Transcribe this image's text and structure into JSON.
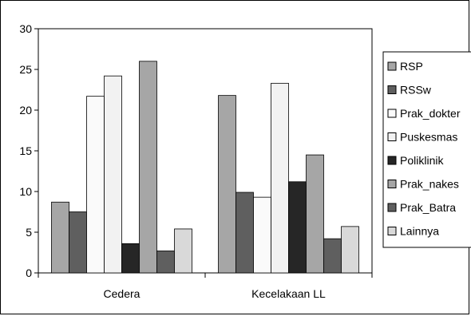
{
  "chart_data": {
    "type": "bar",
    "categories": [
      "Cedera",
      "Kecelakaan LL"
    ],
    "series": [
      {
        "name": "RSP",
        "values": [
          8.7,
          21.8
        ],
        "color": "#a6a6a6"
      },
      {
        "name": "RSSw",
        "values": [
          7.5,
          9.9
        ],
        "color": "#5f5f5f"
      },
      {
        "name": "Prak_dokter",
        "values": [
          21.7,
          9.3
        ],
        "color": "#fafafa"
      },
      {
        "name": "Puskesmas",
        "values": [
          24.2,
          23.3
        ],
        "color": "#f2f2f2"
      },
      {
        "name": "Poliklinik",
        "values": [
          3.6,
          11.2
        ],
        "color": "#262626"
      },
      {
        "name": "Prak_nakes",
        "values": [
          26.0,
          14.5
        ],
        "color": "#a6a6a6"
      },
      {
        "name": "Prak_Batra",
        "values": [
          2.7,
          4.2
        ],
        "color": "#5f5f5f"
      },
      {
        "name": "Lainnya",
        "values": [
          5.4,
          5.7
        ],
        "color": "#d9d9d9"
      }
    ],
    "y_ticks": [
      "0",
      "5",
      "10",
      "15",
      "20",
      "25",
      "30"
    ],
    "ylim": [
      0,
      30
    ],
    "grid": false,
    "legend_position": "right",
    "title": "",
    "xlabel": "",
    "ylabel": ""
  }
}
